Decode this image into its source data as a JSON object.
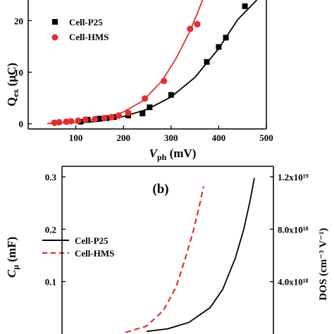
{
  "chart_data": [
    {
      "type": "scatter",
      "panel_label": "",
      "xlabel": {
        "main": "V",
        "sub": "ph",
        "unit": " (mV)"
      },
      "ylabel": {
        "main": "Q",
        "sub": "ex",
        "unit": " (μC)"
      },
      "xlim": [
        0,
        500
      ],
      "ylim": [
        -1,
        24
      ],
      "xticks": [
        100,
        200,
        300,
        400,
        500
      ],
      "yticks": [
        0,
        10,
        20
      ],
      "legend_position": "top-left",
      "series": [
        {
          "name": "Cell-P25",
          "marker": "square",
          "color": "#000000",
          "x": [
            110,
            125,
            150,
            165,
            180,
            210,
            240,
            255,
            300,
            375,
            400,
            415,
            455
          ],
          "y": [
            0.4,
            0.8,
            1.0,
            1.1,
            1.3,
            1.6,
            2.0,
            3.2,
            5.6,
            12.0,
            14.9,
            16.7,
            22.8
          ]
        },
        {
          "name": "Cell-HMS",
          "marker": "circle",
          "color": "#e03030",
          "x": [
            55,
            65,
            80,
            90,
            105,
            120,
            140,
            160,
            175,
            190,
            210,
            245,
            285,
            340,
            355
          ],
          "y": [
            0.2,
            0.3,
            0.4,
            0.5,
            0.6,
            0.8,
            0.9,
            1.1,
            1.3,
            1.6,
            2.1,
            4.9,
            8.3,
            18.4,
            19.3
          ]
        }
      ],
      "fits": [
        {
          "color": "#000000",
          "x": [
            100,
            150,
            200,
            250,
            300,
            350,
            400,
            440,
            480
          ],
          "y": [
            0.1,
            0.5,
            1.4,
            2.8,
            5.2,
            9.0,
            14.6,
            20.2,
            24.0
          ]
        },
        {
          "color": "#e03030",
          "x": [
            40,
            100,
            160,
            200,
            240,
            280,
            310,
            340,
            355,
            366
          ],
          "y": [
            0.05,
            0.3,
            1.1,
            2.3,
            4.4,
            8.2,
            12.6,
            18.0,
            21.4,
            24.0
          ]
        }
      ]
    },
    {
      "type": "line",
      "panel_label": "(b)",
      "xlabel": {
        "main": "",
        "sub": "",
        "unit": ""
      },
      "ylabel": {
        "main": "C",
        "sub": "μ",
        "unit": " (mF)"
      },
      "y2label": "DOS (cm⁻³ V⁻¹)",
      "xlim": [
        0,
        500
      ],
      "ylim": [
        0,
        0.32
      ],
      "yticks": [
        0.1,
        0.2,
        0.3
      ],
      "y2ticks": [
        "4.0x10¹⁸",
        "8.0x10¹⁸",
        "1.2x10¹⁹"
      ],
      "legend_position": "middle-left",
      "series": [
        {
          "name": "Cell-P25",
          "style": "solid",
          "color": "#000000",
          "x": [
            200,
            250,
            300,
            350,
            380,
            410,
            430,
            445,
            455
          ],
          "y": [
            0.005,
            0.01,
            0.022,
            0.05,
            0.085,
            0.145,
            0.2,
            0.255,
            0.298
          ]
        },
        {
          "name": "Cell-HMS",
          "style": "dashed",
          "color": "#e03030",
          "x": [
            150,
            200,
            240,
            270,
            290,
            310,
            325,
            335
          ],
          "y": [
            0.003,
            0.015,
            0.045,
            0.09,
            0.14,
            0.195,
            0.245,
            0.282
          ]
        }
      ]
    }
  ]
}
